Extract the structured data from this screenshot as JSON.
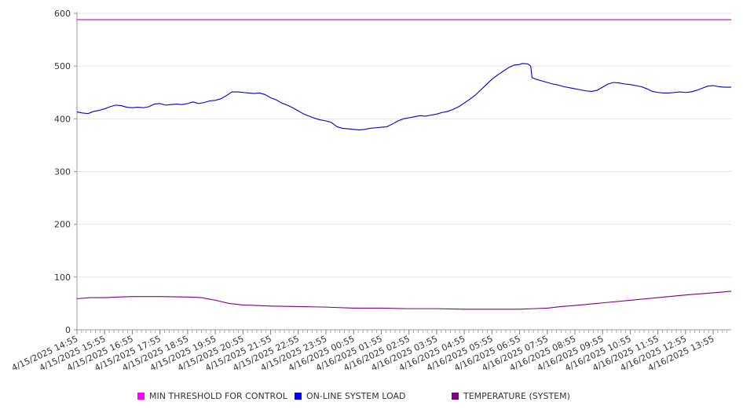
{
  "chart_data": {
    "type": "line",
    "ylim": [
      0,
      600
    ],
    "yticks": [
      0,
      100,
      200,
      300,
      400,
      500,
      600
    ],
    "grid": true,
    "legend_position": "bottom",
    "x_tick_labels": [
      "4/15/2025 14:55",
      "4/15/2025 15:55",
      "4/15/2025 16:55",
      "4/15/2025 17:55",
      "4/15/2025 18:55",
      "4/15/2025 19:55",
      "4/15/2025 20:55",
      "4/15/2025 21:55",
      "4/15/2025 22:55",
      "4/15/2025 23:55",
      "4/16/2025 00:55",
      "4/16/2025 01:55",
      "4/16/2025 02:55",
      "4/16/2025 03:55",
      "4/16/2025 04:55",
      "4/16/2025 05:55",
      "4/16/2025 06:55",
      "4/16/2025 07:55",
      "4/16/2025 08:55",
      "4/16/2025 09:55",
      "4/16/2025 10:55",
      "4/16/2025 11:55",
      "4/16/2025 12:55",
      "4/16/2025 13:55"
    ],
    "x_hours_start": 0,
    "x_hours_end": 23.65,
    "series": [
      {
        "name": "MIN THRESHOLD FOR CONTROL",
        "color": "#cc00cc",
        "points": [
          [
            0,
            588
          ],
          [
            23.65,
            588
          ]
        ]
      },
      {
        "name": "ON-LINE SYSTEM LOAD",
        "color": "#0000cc",
        "points": [
          [
            0,
            413
          ],
          [
            0.2,
            411
          ],
          [
            0.4,
            410
          ],
          [
            0.6,
            414
          ],
          [
            0.8,
            416
          ],
          [
            1.0,
            419
          ],
          [
            1.2,
            423
          ],
          [
            1.4,
            426
          ],
          [
            1.6,
            425
          ],
          [
            1.8,
            422
          ],
          [
            2.0,
            421
          ],
          [
            2.2,
            422
          ],
          [
            2.4,
            421
          ],
          [
            2.6,
            423
          ],
          [
            2.8,
            428
          ],
          [
            3.0,
            429
          ],
          [
            3.2,
            426
          ],
          [
            3.4,
            427
          ],
          [
            3.6,
            428
          ],
          [
            3.8,
            427
          ],
          [
            4.0,
            429
          ],
          [
            4.2,
            432
          ],
          [
            4.4,
            429
          ],
          [
            4.6,
            431
          ],
          [
            4.8,
            434
          ],
          [
            5.0,
            435
          ],
          [
            5.2,
            438
          ],
          [
            5.4,
            444
          ],
          [
            5.6,
            451
          ],
          [
            5.8,
            451
          ],
          [
            6.0,
            450
          ],
          [
            6.2,
            449
          ],
          [
            6.4,
            448
          ],
          [
            6.6,
            449
          ],
          [
            6.8,
            446
          ],
          [
            7.0,
            440
          ],
          [
            7.2,
            436
          ],
          [
            7.4,
            430
          ],
          [
            7.6,
            426
          ],
          [
            7.8,
            421
          ],
          [
            8.0,
            415
          ],
          [
            8.2,
            409
          ],
          [
            8.4,
            405
          ],
          [
            8.6,
            401
          ],
          [
            8.8,
            398
          ],
          [
            9.0,
            396
          ],
          [
            9.2,
            393
          ],
          [
            9.4,
            385
          ],
          [
            9.6,
            382
          ],
          [
            9.8,
            381
          ],
          [
            10.0,
            380
          ],
          [
            10.2,
            379
          ],
          [
            10.4,
            380
          ],
          [
            10.6,
            382
          ],
          [
            10.8,
            383
          ],
          [
            11.0,
            384
          ],
          [
            11.2,
            385
          ],
          [
            11.4,
            390
          ],
          [
            11.6,
            396
          ],
          [
            11.8,
            400
          ],
          [
            12.0,
            402
          ],
          [
            12.2,
            404
          ],
          [
            12.4,
            406
          ],
          [
            12.6,
            405
          ],
          [
            12.8,
            407
          ],
          [
            13.0,
            409
          ],
          [
            13.2,
            412
          ],
          [
            13.4,
            414
          ],
          [
            13.6,
            418
          ],
          [
            13.8,
            423
          ],
          [
            14.0,
            430
          ],
          [
            14.2,
            437
          ],
          [
            14.4,
            445
          ],
          [
            14.6,
            455
          ],
          [
            14.8,
            465
          ],
          [
            15.0,
            475
          ],
          [
            15.2,
            483
          ],
          [
            15.4,
            490
          ],
          [
            15.6,
            497
          ],
          [
            15.8,
            502
          ],
          [
            16.0,
            503
          ],
          [
            16.1,
            505
          ],
          [
            16.3,
            504
          ],
          [
            16.4,
            500
          ],
          [
            16.45,
            478
          ],
          [
            16.6,
            475
          ],
          [
            16.8,
            472
          ],
          [
            17.0,
            469
          ],
          [
            17.2,
            466
          ],
          [
            17.4,
            464
          ],
          [
            17.6,
            461
          ],
          [
            17.8,
            459
          ],
          [
            18.0,
            457
          ],
          [
            18.2,
            455
          ],
          [
            18.4,
            453
          ],
          [
            18.6,
            452
          ],
          [
            18.8,
            454
          ],
          [
            19.0,
            460
          ],
          [
            19.2,
            466
          ],
          [
            19.4,
            469
          ],
          [
            19.6,
            468
          ],
          [
            19.8,
            466
          ],
          [
            20.0,
            465
          ],
          [
            20.2,
            463
          ],
          [
            20.4,
            461
          ],
          [
            20.6,
            457
          ],
          [
            20.8,
            452
          ],
          [
            21.0,
            450
          ],
          [
            21.2,
            449
          ],
          [
            21.4,
            449
          ],
          [
            21.6,
            450
          ],
          [
            21.8,
            451
          ],
          [
            22.0,
            450
          ],
          [
            22.2,
            451
          ],
          [
            22.4,
            454
          ],
          [
            22.6,
            458
          ],
          [
            22.8,
            462
          ],
          [
            23.0,
            463
          ],
          [
            23.2,
            461
          ],
          [
            23.4,
            460
          ],
          [
            23.65,
            460
          ]
        ]
      },
      {
        "name": "TEMPERATURE (SYSTEM)",
        "color": "#800080",
        "points": [
          [
            0,
            59
          ],
          [
            0.5,
            61
          ],
          [
            1.0,
            61
          ],
          [
            1.5,
            62
          ],
          [
            2.0,
            63
          ],
          [
            3.0,
            63
          ],
          [
            4.0,
            62
          ],
          [
            4.5,
            61
          ],
          [
            5.0,
            56
          ],
          [
            5.5,
            50
          ],
          [
            6.0,
            47
          ],
          [
            6.5,
            46
          ],
          [
            7.0,
            45
          ],
          [
            8.0,
            44
          ],
          [
            9.0,
            43
          ],
          [
            10.0,
            41
          ],
          [
            11.0,
            41
          ],
          [
            12.0,
            40
          ],
          [
            13.0,
            40
          ],
          [
            14.0,
            39
          ],
          [
            15.0,
            39
          ],
          [
            16.0,
            39
          ],
          [
            16.5,
            40
          ],
          [
            17.0,
            41
          ],
          [
            17.5,
            44
          ],
          [
            18.0,
            46
          ],
          [
            19.0,
            51
          ],
          [
            20.0,
            56
          ],
          [
            21.0,
            61
          ],
          [
            22.0,
            66
          ],
          [
            23.0,
            70
          ],
          [
            23.65,
            73
          ]
        ]
      }
    ]
  },
  "legend": {
    "items": [
      {
        "label": "MIN THRESHOLD FOR CONTROL",
        "color": "#ff00ff"
      },
      {
        "label": "ON-LINE SYSTEM LOAD",
        "color": "#0000ff"
      },
      {
        "label": "TEMPERATURE (SYSTEM)",
        "color": "#800080"
      }
    ]
  }
}
